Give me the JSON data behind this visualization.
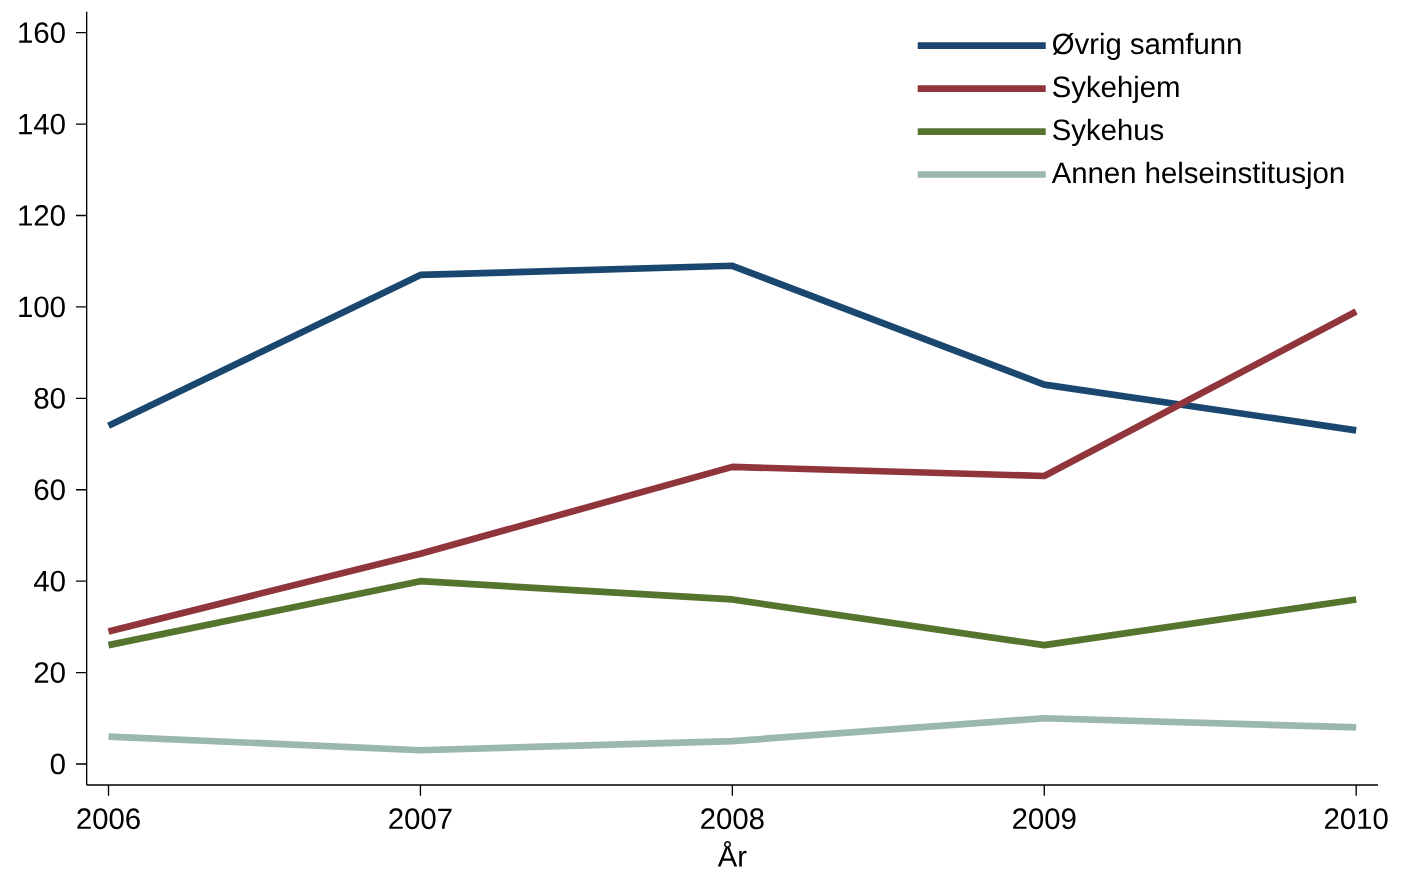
{
  "chart_data": {
    "type": "line",
    "xlabel": "År",
    "x": [
      2006,
      2007,
      2008,
      2009,
      2010
    ],
    "series": [
      {
        "name": "Øvrig samfunn",
        "color": "#1a476f",
        "values": [
          74,
          107,
          109,
          83,
          73
        ]
      },
      {
        "name": "Sykehjem",
        "color": "#90353b",
        "values": [
          29,
          46,
          65,
          63,
          99
        ]
      },
      {
        "name": "Sykehus",
        "color": "#55752f",
        "values": [
          26,
          40,
          36,
          26,
          36
        ]
      },
      {
        "name": "Annen helseinstitusjon",
        "color": "#9ab8ae",
        "values": [
          6,
          3,
          5,
          10,
          8
        ]
      }
    ],
    "xlim": [
      2005.93,
      2010.07
    ],
    "ylim": [
      -4.6,
      164.6
    ],
    "xticks": [
      2006,
      2007,
      2008,
      2009,
      2010
    ],
    "yticks": [
      0,
      20,
      40,
      60,
      80,
      100,
      120,
      140,
      160
    ],
    "grid": false,
    "legend": "top right",
    "marker": "none",
    "line_style": "solid"
  }
}
